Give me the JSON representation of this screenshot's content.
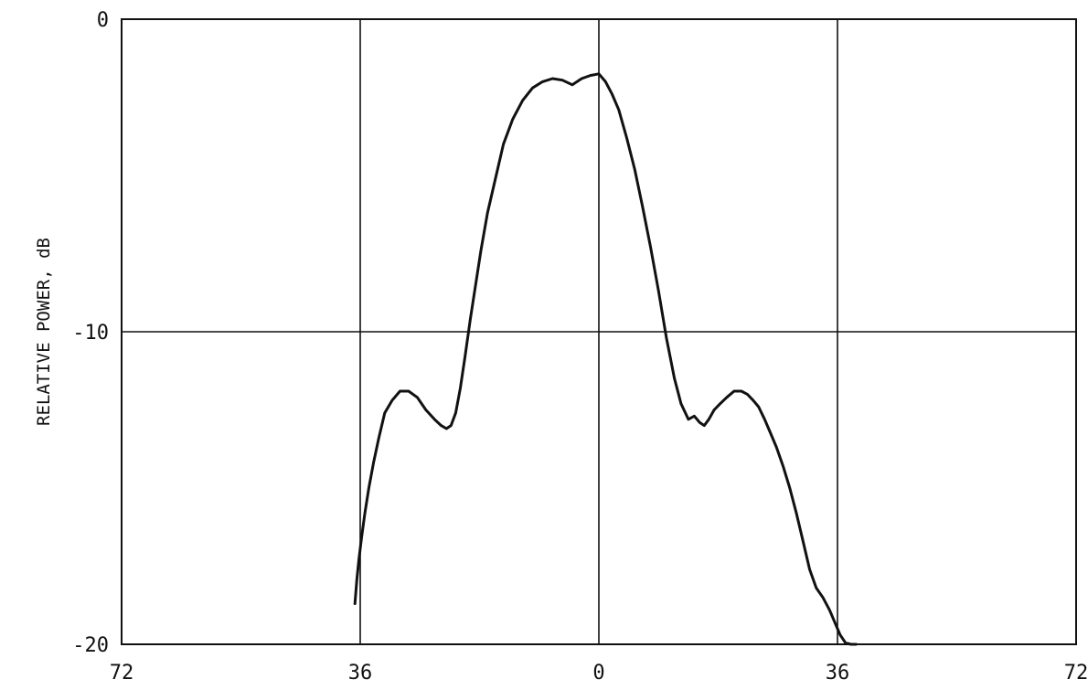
{
  "chart_data": {
    "type": "line",
    "title": "",
    "xlabel": "",
    "ylabel": "RELATIVE POWER, dB",
    "xlim": [
      -72,
      72
    ],
    "ylim": [
      -20,
      0
    ],
    "x_ticks": [
      {
        "value": -72,
        "label": "72"
      },
      {
        "value": -36,
        "label": "36"
      },
      {
        "value": 0,
        "label": "0"
      },
      {
        "value": 36,
        "label": "36"
      },
      {
        "value": 72,
        "label": "72"
      }
    ],
    "y_ticks": [
      {
        "value": 0,
        "label": "0"
      },
      {
        "value": -10,
        "label": "-10"
      },
      {
        "value": -20,
        "label": "-20"
      }
    ],
    "grid": true,
    "series": [
      {
        "x": [
          -36.8,
          -36.5,
          -36.2,
          -35.8,
          -35.3,
          -34.7,
          -34.0,
          -33.2,
          -32.3,
          -31.2,
          -30.0,
          -28.7,
          -27.4,
          -26.1,
          -24.8,
          -23.8,
          -23.0,
          -22.3,
          -21.6,
          -20.9,
          -20.2,
          -19.4,
          -18.6,
          -17.8,
          -16.8,
          -15.6,
          -14.4,
          -13.0,
          -11.5,
          -10.0,
          -8.5,
          -7.0,
          -5.5,
          -4.0,
          -2.6,
          -1.3,
          0.0,
          1.0,
          2.0,
          3.0,
          4.2,
          5.4,
          6.6,
          7.8,
          9.0,
          10.2,
          11.4,
          12.4,
          13.5,
          14.4,
          15.2,
          15.9,
          16.6,
          17.4,
          18.3,
          19.3,
          20.4,
          21.5,
          22.4,
          23.3,
          24.1,
          25.0,
          25.8,
          26.8,
          27.8,
          28.8,
          29.8,
          30.8,
          31.8,
          32.8,
          33.8,
          34.8,
          35.6,
          36.4,
          37.2,
          38.0,
          38.8
        ],
        "y": [
          -18.7,
          -17.9,
          -17.3,
          -16.6,
          -15.8,
          -15.0,
          -14.2,
          -13.4,
          -12.6,
          -12.2,
          -11.9,
          -11.9,
          -12.1,
          -12.5,
          -12.8,
          -13.0,
          -13.1,
          -13.0,
          -12.6,
          -11.8,
          -10.8,
          -9.6,
          -8.5,
          -7.4,
          -6.2,
          -5.1,
          -4.0,
          -3.2,
          -2.6,
          -2.2,
          -2.0,
          -1.9,
          -1.95,
          -2.1,
          -1.9,
          -1.8,
          -1.75,
          -2.0,
          -2.4,
          -2.9,
          -3.8,
          -4.8,
          -6.0,
          -7.3,
          -8.7,
          -10.2,
          -11.5,
          -12.3,
          -12.8,
          -12.7,
          -12.9,
          -13.0,
          -12.8,
          -12.5,
          -12.3,
          -12.1,
          -11.9,
          -11.9,
          -12.0,
          -12.2,
          -12.4,
          -12.8,
          -13.2,
          -13.7,
          -14.3,
          -15.0,
          -15.8,
          -16.7,
          -17.6,
          -18.2,
          -18.5,
          -18.9,
          -19.3,
          -19.7,
          -19.95,
          -20.0,
          -20.0
        ]
      }
    ]
  }
}
